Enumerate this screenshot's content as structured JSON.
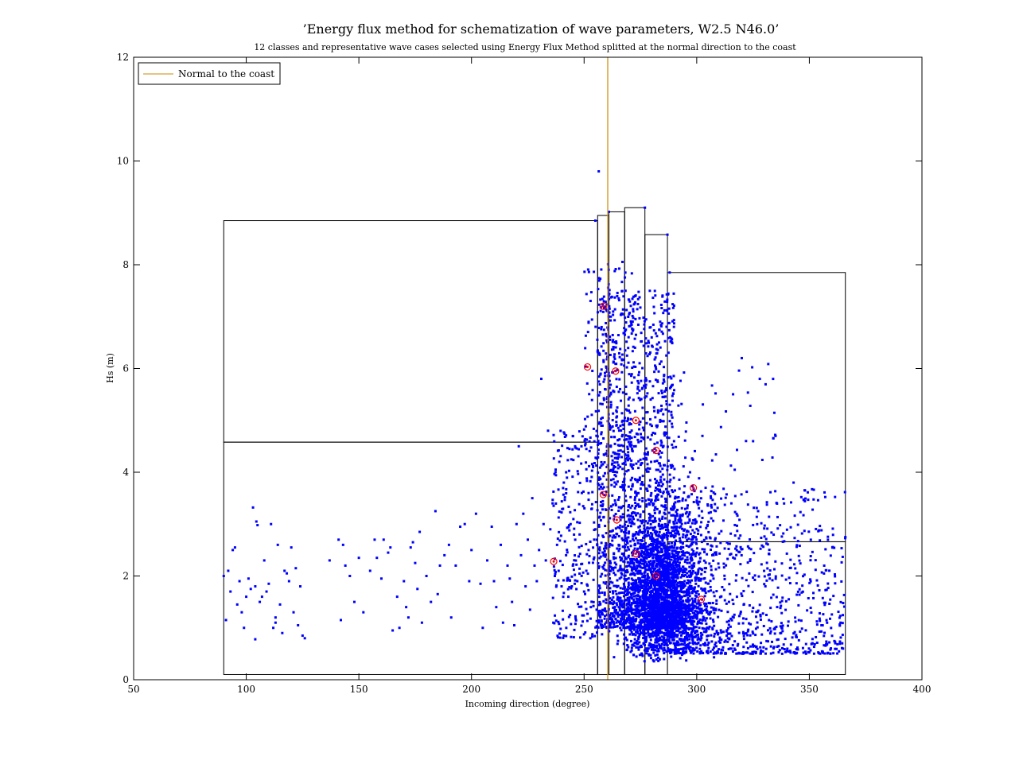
{
  "chart_data": {
    "type": "scatter",
    "title": "’Energy flux method for schematization of wave parameters, W2.5 N46.0’",
    "subtitle": "12 classes and representative wave cases selected using Energy Flux Method splitted at the normal direction to the coast",
    "xlabel": "Incoming direction (degree)",
    "ylabel": "Hs (m)",
    "xlim": [
      50,
      400
    ],
    "ylim": [
      0,
      12
    ],
    "xticks": [
      "50",
      "100",
      "150",
      "200",
      "250",
      "300",
      "350",
      "400"
    ],
    "yticks": [
      "0",
      "2",
      "4",
      "6",
      "8",
      "10",
      "12"
    ],
    "grid": false,
    "legend": {
      "position": "top-left",
      "entries": [
        "Normal to the coast"
      ]
    },
    "colors": {
      "observations": "#0000ff",
      "representative": "#ff0000",
      "normal_line": "#cc8800",
      "classes": "#000000"
    },
    "normal_direction": 260.5,
    "class_boxes": [
      {
        "x": [
          90,
          256
        ],
        "y": [
          0.1,
          4.58
        ]
      },
      {
        "x": [
          90,
          256
        ],
        "y": [
          4.58,
          8.85
        ]
      },
      {
        "x": [
          256,
          261
        ],
        "y": [
          0.1,
          8.95
        ]
      },
      {
        "x": [
          261,
          268
        ],
        "y": [
          0.1,
          9.02
        ]
      },
      {
        "x": [
          268,
          277
        ],
        "y": [
          0.1,
          9.1
        ]
      },
      {
        "x": [
          277,
          287
        ],
        "y": [
          0.1,
          8.58
        ]
      },
      {
        "x": [
          287,
          366
        ],
        "y": [
          0.1,
          2.66
        ]
      },
      {
        "x": [
          287,
          366
        ],
        "y": [
          2.66,
          7.85
        ]
      }
    ],
    "representative_points": [
      {
        "x": 236.5,
        "y": 2.28
      },
      {
        "x": 251.5,
        "y": 6.03
      },
      {
        "x": 258.5,
        "y": 7.2
      },
      {
        "x": 258.5,
        "y": 3.57
      },
      {
        "x": 264.0,
        "y": 5.95
      },
      {
        "x": 264.5,
        "y": 3.08
      },
      {
        "x": 273.0,
        "y": 5.0
      },
      {
        "x": 273.0,
        "y": 2.43
      },
      {
        "x": 282.0,
        "y": 4.42
      },
      {
        "x": 282.0,
        "y": 2.0
      },
      {
        "x": 298.5,
        "y": 3.7
      },
      {
        "x": 302.0,
        "y": 1.55
      }
    ],
    "observation_points": [
      [
        90,
        2.0
      ],
      [
        91,
        1.15
      ],
      [
        92,
        2.1
      ],
      [
        93,
        1.7
      ],
      [
        94,
        2.5
      ],
      [
        95,
        2.55
      ],
      [
        96,
        1.45
      ],
      [
        97,
        1.9
      ],
      [
        98,
        1.3
      ],
      [
        99,
        1.0
      ],
      [
        100,
        1.6
      ],
      [
        101,
        1.95
      ],
      [
        102,
        1.75
      ],
      [
        103,
        3.32
      ],
      [
        104,
        1.8
      ],
      [
        104.5,
        3.05
      ],
      [
        105,
        2.98
      ],
      [
        106,
        1.5
      ],
      [
        107,
        1.6
      ],
      [
        108,
        2.3
      ],
      [
        109,
        1.7
      ],
      [
        110,
        1.85
      ],
      [
        111,
        3.0
      ],
      [
        112,
        1.0
      ],
      [
        113,
        1.2
      ],
      [
        114,
        2.6
      ],
      [
        115,
        1.45
      ],
      [
        116,
        0.9
      ],
      [
        117,
        2.1
      ],
      [
        118,
        2.05
      ],
      [
        119,
        1.9
      ],
      [
        120,
        2.55
      ],
      [
        121,
        1.3
      ],
      [
        122,
        2.15
      ],
      [
        123,
        1.05
      ],
      [
        124,
        1.8
      ],
      [
        125,
        0.85
      ],
      [
        126,
        0.8
      ],
      [
        104,
        0.78
      ],
      [
        113,
        1.1
      ],
      [
        137,
        2.3
      ],
      [
        141,
        2.7
      ],
      [
        142,
        1.15
      ],
      [
        143,
        2.6
      ],
      [
        144,
        2.2
      ],
      [
        146,
        2.0
      ],
      [
        148,
        1.5
      ],
      [
        150,
        2.35
      ],
      [
        152,
        1.3
      ],
      [
        155,
        2.1
      ],
      [
        157,
        2.7
      ],
      [
        158,
        2.35
      ],
      [
        160,
        1.95
      ],
      [
        161,
        2.7
      ],
      [
        163,
        2.45
      ],
      [
        164,
        2.55
      ],
      [
        165,
        0.95
      ],
      [
        167,
        1.6
      ],
      [
        168,
        1.0
      ],
      [
        170,
        1.9
      ],
      [
        171,
        1.4
      ],
      [
        172,
        1.2
      ],
      [
        173,
        2.55
      ],
      [
        174,
        2.65
      ],
      [
        175,
        2.25
      ],
      [
        176,
        1.75
      ],
      [
        177,
        2.85
      ],
      [
        178,
        1.1
      ],
      [
        180,
        2.0
      ],
      [
        182,
        1.5
      ],
      [
        184,
        3.25
      ],
      [
        185,
        1.65
      ],
      [
        186,
        2.2
      ],
      [
        188,
        2.4
      ],
      [
        190,
        2.6
      ],
      [
        191,
        1.2
      ],
      [
        193,
        2.2
      ],
      [
        195,
        2.95
      ],
      [
        197,
        3.0
      ],
      [
        199,
        1.9
      ],
      [
        200,
        2.5
      ],
      [
        202,
        3.2
      ],
      [
        204,
        1.85
      ],
      [
        205,
        1.0
      ],
      [
        207,
        2.3
      ],
      [
        209,
        2.95
      ],
      [
        210,
        1.9
      ],
      [
        211,
        1.4
      ],
      [
        213,
        2.6
      ],
      [
        214,
        1.1
      ],
      [
        216,
        2.2
      ],
      [
        217,
        1.95
      ],
      [
        218,
        1.5
      ],
      [
        219,
        1.05
      ],
      [
        220,
        3.0
      ],
      [
        221,
        4.5
      ],
      [
        222,
        2.4
      ],
      [
        223,
        3.2
      ],
      [
        224,
        1.8
      ],
      [
        225,
        2.7
      ],
      [
        226,
        1.35
      ],
      [
        227,
        3.5
      ],
      [
        228,
        2.2
      ],
      [
        229,
        1.9
      ],
      [
        230,
        2.5
      ],
      [
        231,
        5.8
      ],
      [
        232,
        3.0
      ],
      [
        233,
        2.3
      ],
      [
        234,
        4.8
      ],
      [
        235,
        2.9
      ],
      [
        236,
        3.4
      ],
      [
        237,
        2.0
      ],
      [
        238,
        2.6
      ],
      [
        239,
        4.2
      ],
      [
        240,
        1.8
      ],
      [
        241,
        3.8
      ],
      [
        242,
        2.4
      ],
      [
        243,
        1.6
      ],
      [
        244,
        3.0
      ],
      [
        245,
        2.2
      ],
      [
        246,
        4.5
      ],
      [
        247,
        1.9
      ],
      [
        248,
        2.8
      ],
      [
        249,
        3.6
      ],
      [
        250,
        1.7
      ],
      [
        251,
        2.1
      ],
      [
        252,
        2.5
      ],
      [
        253,
        1.4
      ],
      [
        254,
        4.1
      ],
      [
        255,
        2.9
      ]
    ]
  }
}
